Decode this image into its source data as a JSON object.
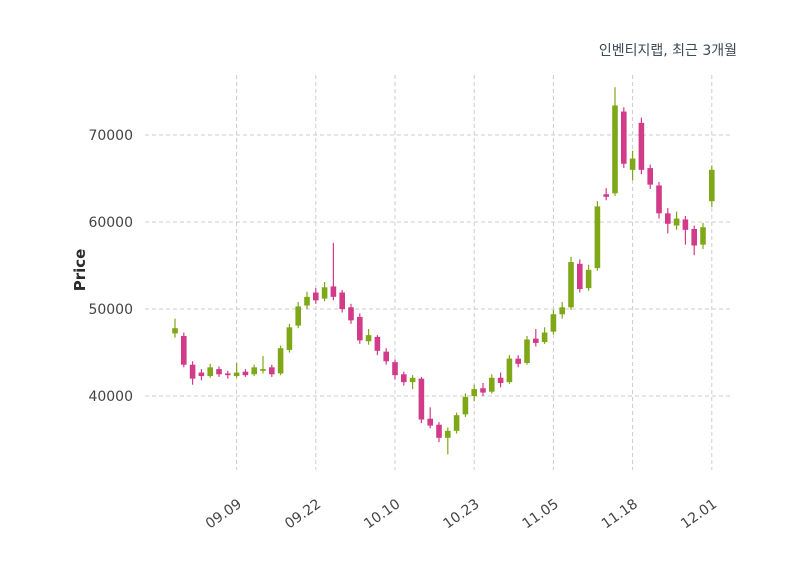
{
  "header": {
    "title": "인벤티지랩, 최근 3개월"
  },
  "chart_data": {
    "type": "candlestick",
    "title": "인벤티지랩, 최근 3개월",
    "ylabel": "Price",
    "x_tick_labels": [
      "09.09",
      "09.22",
      "10.10",
      "10.23",
      "11.05",
      "11.18",
      "12.01"
    ],
    "x_tick_indices": [
      7,
      16,
      25,
      34,
      43,
      52,
      61
    ],
    "y_ticks": [
      40000,
      50000,
      60000,
      70000
    ],
    "ylim": [
      31500,
      76900
    ],
    "grid": true,
    "legend": "none",
    "colors": {
      "up": "#7fa818",
      "down": "#d23b8a",
      "grid": "#cccccc",
      "tick_text": "#444444",
      "title_text": "#3d4b57"
    },
    "candle_format": [
      "open",
      "high",
      "low",
      "close"
    ],
    "candles": [
      [
        47200,
        48900,
        46700,
        47800
      ],
      [
        46900,
        47300,
        43300,
        43600
      ],
      [
        43600,
        44000,
        41300,
        42000
      ],
      [
        42700,
        43100,
        41800,
        42300
      ],
      [
        42300,
        43700,
        42100,
        43300
      ],
      [
        43100,
        43400,
        42200,
        42500
      ],
      [
        42600,
        42900,
        42000,
        42400
      ],
      [
        42300,
        43800,
        42100,
        42700
      ],
      [
        42800,
        43100,
        42200,
        42400
      ],
      [
        42500,
        43600,
        42300,
        43300
      ],
      [
        42900,
        44600,
        42600,
        43100
      ],
      [
        43300,
        43600,
        42200,
        42500
      ],
      [
        42600,
        45800,
        42400,
        45500
      ],
      [
        45300,
        48300,
        45000,
        47900
      ],
      [
        48100,
        50800,
        47800,
        50300
      ],
      [
        50400,
        52000,
        50000,
        51400
      ],
      [
        51900,
        52400,
        50600,
        51000
      ],
      [
        51200,
        53100,
        50900,
        52500
      ],
      [
        52600,
        57600,
        51000,
        51400
      ],
      [
        51900,
        52200,
        49600,
        50000
      ],
      [
        50200,
        50600,
        48300,
        48700
      ],
      [
        49100,
        49500,
        46000,
        46400
      ],
      [
        46300,
        47700,
        45900,
        47000
      ],
      [
        46800,
        47000,
        44700,
        45200
      ],
      [
        45100,
        45500,
        43600,
        44000
      ],
      [
        43900,
        44200,
        41900,
        42400
      ],
      [
        42500,
        42800,
        41200,
        41600
      ],
      [
        41600,
        42400,
        40800,
        42100
      ],
      [
        42000,
        42200,
        36900,
        37300
      ],
      [
        37400,
        38700,
        36300,
        36600
      ],
      [
        36700,
        37000,
        34700,
        35200
      ],
      [
        35200,
        36400,
        33300,
        36000
      ],
      [
        36000,
        38100,
        35700,
        37800
      ],
      [
        37900,
        40300,
        37600,
        39900
      ],
      [
        40000,
        41300,
        39400,
        40800
      ],
      [
        40900,
        41500,
        40000,
        40400
      ],
      [
        40500,
        42500,
        40300,
        42100
      ],
      [
        42100,
        42700,
        41000,
        41500
      ],
      [
        41600,
        44700,
        41400,
        44300
      ],
      [
        44300,
        44700,
        43300,
        43700
      ],
      [
        43800,
        46900,
        43600,
        46500
      ],
      [
        46600,
        47700,
        45700,
        46100
      ],
      [
        46200,
        47900,
        46000,
        47300
      ],
      [
        47400,
        49900,
        47100,
        49400
      ],
      [
        49400,
        50800,
        48900,
        50200
      ],
      [
        50200,
        56000,
        49900,
        55400
      ],
      [
        55200,
        55700,
        51900,
        52300
      ],
      [
        52400,
        55100,
        52100,
        54500
      ],
      [
        54700,
        62400,
        54400,
        61800
      ],
      [
        63200,
        63900,
        62500,
        62900
      ],
      [
        63300,
        75500,
        63000,
        73400
      ],
      [
        72700,
        73200,
        66200,
        66700
      ],
      [
        66000,
        68200,
        64800,
        67300
      ],
      [
        71400,
        72000,
        65500,
        66000
      ],
      [
        66200,
        66600,
        63800,
        64300
      ],
      [
        64200,
        64600,
        60400,
        61000
      ],
      [
        61000,
        61600,
        58700,
        59800
      ],
      [
        59600,
        61200,
        59100,
        60400
      ],
      [
        60300,
        60700,
        57400,
        59100
      ],
      [
        59200,
        59600,
        56200,
        57300
      ],
      [
        57400,
        59900,
        56900,
        59400
      ],
      [
        62400,
        66500,
        61700,
        66000
      ]
    ]
  }
}
